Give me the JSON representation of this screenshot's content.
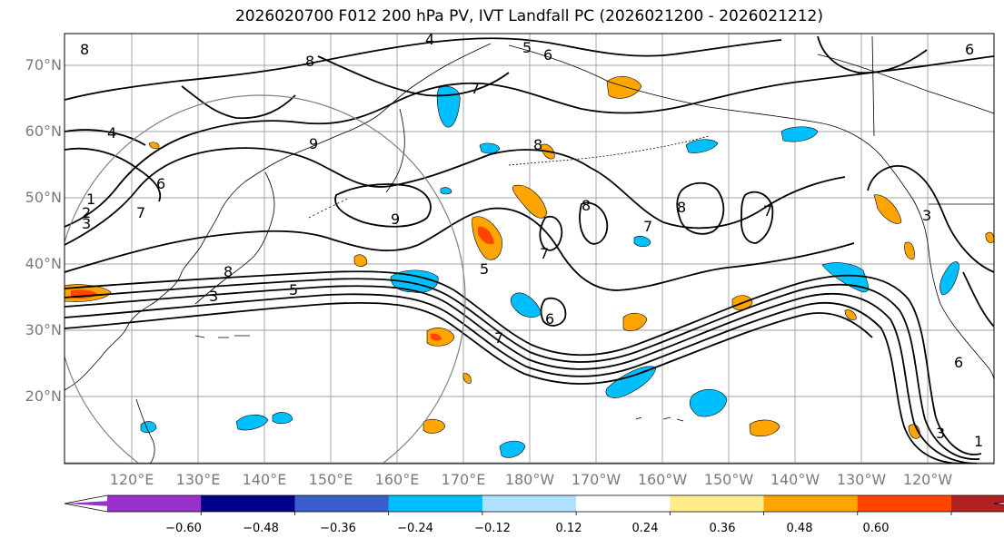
{
  "title": "2026020700 F012 200 hPa PV, IVT Landfall PC (2026021200 - 2026021212)",
  "lat_labels": [
    "70°N",
    "60°N",
    "50°N",
    "40°N",
    "30°N",
    "20°N"
  ],
  "lon_labels": [
    "120°E",
    "130°E",
    "140°E",
    "150°E",
    "160°E",
    "170°E",
    "180°W",
    "170°W",
    "160°W",
    "150°W",
    "140°W",
    "130°W",
    "120°W"
  ],
  "contour_labels": [
    "4",
    "5",
    "6",
    "7",
    "8",
    "9",
    "7",
    "8",
    "9",
    "5",
    "1",
    "2",
    "3",
    "4",
    "6",
    "8",
    "8",
    "7",
    "7",
    "8",
    "7",
    "8",
    "6",
    "5",
    "7",
    "3",
    "6",
    "3",
    "1",
    "6",
    "3"
  ],
  "colorbar": {
    "colors": [
      "#9932cc",
      "#00008b",
      "#3a5fcd",
      "#00bfff",
      "#b0e2ff",
      "#ffffff",
      "#ffec8b",
      "#ffa500",
      "#ff4500",
      "#b22222",
      "#ff82ab"
    ],
    "tick_labels": [
      "−0.60",
      "−0.48",
      "−0.36",
      "−0.24",
      "−0.12",
      "0.12",
      "0.24",
      "0.36",
      "0.48",
      "0.60"
    ]
  },
  "colors": {
    "grid": "#a0a0a0",
    "coast": "#000000",
    "contour": "#000000",
    "circle": "#808080"
  }
}
